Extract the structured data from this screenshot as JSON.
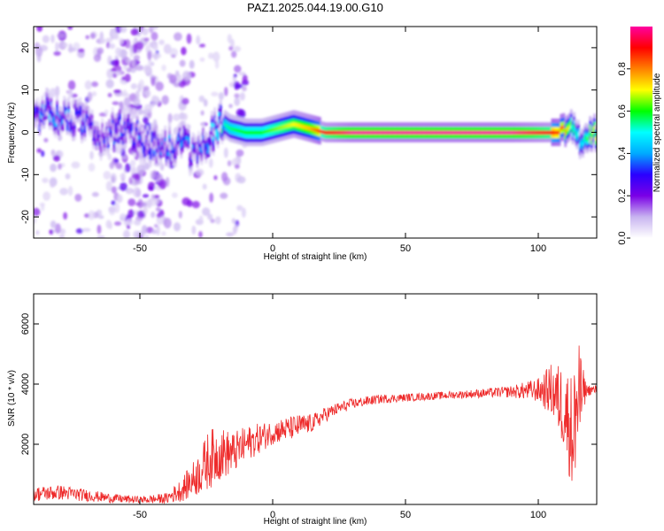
{
  "title": "PAZ1.2025.044.19.00.G10",
  "chart_data": [
    {
      "type": "heatmap",
      "xlabel": "Height of straight line (km)",
      "ylabel": "Frequency (Hz)",
      "xlim": [
        -90,
        122
      ],
      "ylim": [
        -25,
        25
      ],
      "xticks": [
        -50,
        0,
        50,
        100
      ],
      "xtick_labels": [
        "-50",
        "0",
        "50",
        "100"
      ],
      "yticks": [
        -20,
        -10,
        0,
        10,
        20
      ],
      "ytick_labels": [
        "-20",
        "-10",
        "0",
        "10",
        "20"
      ],
      "colorbar": {
        "label": "Normalized spectral amplitude",
        "range": [
          0.0,
          1.0
        ],
        "ticks": [
          0.0,
          0.2,
          0.4,
          0.6,
          0.8
        ],
        "tick_labels": [
          "0.0",
          "0.2",
          "0.4",
          "0.6",
          "0.8"
        ],
        "colors": [
          "#ffffff",
          "#c8b4f0",
          "#7a00e6",
          "#2a00ff",
          "#00aaff",
          "#00ffff",
          "#00ff00",
          "#ffff00",
          "#ff8000",
          "#ff0000",
          "#ff00a0"
        ]
      },
      "ridge": {
        "x": [
          -88,
          -82,
          -76,
          -70,
          -64,
          -58,
          -52,
          -46,
          -40,
          -34,
          -28,
          -24,
          -20,
          -16,
          -10,
          -4,
          2,
          8,
          14,
          20,
          30,
          50,
          70,
          90,
          105,
          110,
          113,
          116,
          120
        ],
        "freq": [
          4,
          5,
          3,
          2,
          -2,
          1,
          -1,
          -3,
          -4,
          -3,
          -6,
          -1,
          3,
          1,
          0,
          0,
          1,
          2,
          1,
          0,
          0,
          0,
          0,
          0,
          0,
          0,
          1,
          -2,
          0
        ],
        "amplitude": [
          0.35,
          0.4,
          0.3,
          0.3,
          0.3,
          0.3,
          0.3,
          0.3,
          0.3,
          0.35,
          0.3,
          0.4,
          0.5,
          0.55,
          0.6,
          0.6,
          0.65,
          0.7,
          0.75,
          0.9,
          1.0,
          1.0,
          1.0,
          1.0,
          0.9,
          0.8,
          0.6,
          0.45,
          0.7
        ]
      }
    },
    {
      "type": "line",
      "xlabel": "Height of straight line (km)",
      "ylabel": "SNR (10 * v/v)",
      "xlim": [
        -90,
        122
      ],
      "ylim": [
        0,
        7000
      ],
      "xticks": [
        -50,
        0,
        50,
        100
      ],
      "xtick_labels": [
        "-50",
        "0",
        "50",
        "100"
      ],
      "yticks": [
        2000,
        4000,
        6000
      ],
      "ytick_labels": [
        "2000",
        "4000",
        "6000"
      ],
      "color": "#ee2a2a",
      "x": [
        -90,
        -80,
        -70,
        -60,
        -50,
        -40,
        -34,
        -28,
        -24,
        -20,
        -15,
        -10,
        -5,
        0,
        5,
        10,
        15,
        20,
        25,
        30,
        40,
        50,
        60,
        70,
        80,
        90,
        100,
        105,
        110,
        113,
        115,
        118,
        122
      ],
      "y": [
        350,
        400,
        300,
        200,
        150,
        200,
        500,
        1000,
        1500,
        1700,
        1700,
        2000,
        2200,
        2400,
        2500,
        2600,
        2700,
        3000,
        3200,
        3350,
        3500,
        3550,
        3600,
        3650,
        3700,
        3750,
        3800,
        3800,
        3200,
        2300,
        3500,
        3800,
        3800
      ],
      "noise": [
        250,
        250,
        200,
        150,
        120,
        180,
        400,
        700,
        1000,
        900,
        700,
        600,
        500,
        400,
        400,
        400,
        300,
        250,
        200,
        180,
        150,
        130,
        130,
        130,
        150,
        200,
        400,
        900,
        1500,
        2000,
        2000,
        200,
        150
      ]
    }
  ]
}
